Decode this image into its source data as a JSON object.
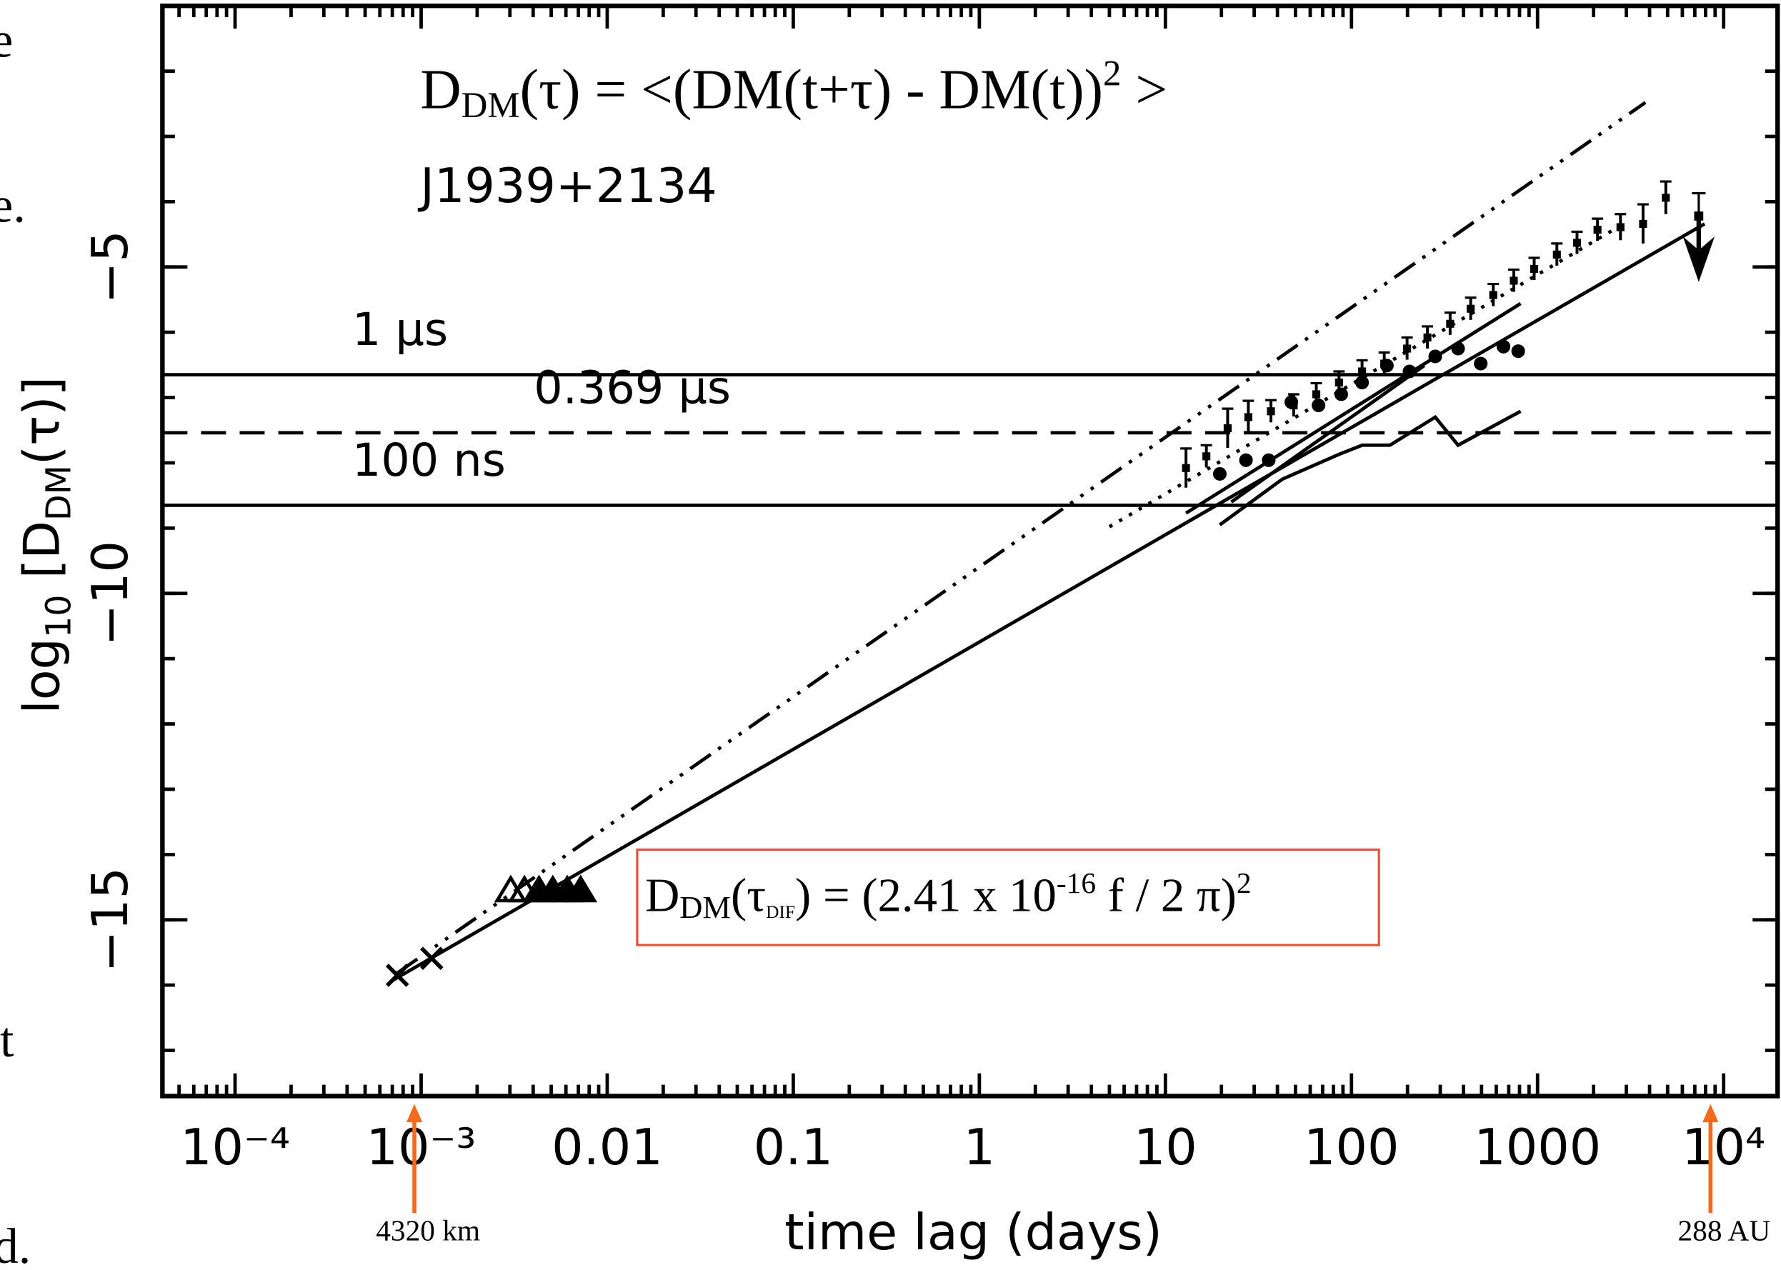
{
  "chart_data": {
    "type": "scatter",
    "equation": [
      "D",
      "DM",
      "(τ) = <(DM(t+τ) - DM(t))",
      "2",
      " >"
    ],
    "source": "J1939+2134",
    "box_equation": [
      "D",
      "DM",
      "(τ",
      "DIF",
      ") = (2.41 x 10",
      "-16",
      " f / 2 π)",
      "2"
    ],
    "xlabel": "time lag (days)",
    "ylabel": [
      "log",
      "10",
      " [D",
      "DM",
      "(τ)]"
    ],
    "xscale": "log",
    "xlim": [
      4.07e-05,
      19500
    ],
    "ylim": [
      -17.7,
      -1
    ],
    "xticks": [
      {
        "value": 0.0001,
        "label": "10⁻⁴"
      },
      {
        "value": 0.001,
        "label": "10⁻³"
      },
      0.01,
      0.1,
      1,
      10,
      100,
      1000,
      {
        "value": 10000,
        "label": "10⁴"
      }
    ],
    "yticks": [
      {
        "value": -5,
        "label": "−5"
      },
      {
        "value": -10,
        "label": "−10"
      },
      {
        "value": -15,
        "label": "−15"
      }
    ],
    "minor_ticks": true,
    "hlines": [
      {
        "value": -6.65,
        "label": "1 μs",
        "dash": "solid"
      },
      {
        "value": -7.54,
        "label": "0.369 μs",
        "dash": "dashed"
      },
      {
        "value": -8.65,
        "label": "100 ns",
        "dash": "solid"
      }
    ],
    "lines": [
      {
        "x": [
          0.00069,
          7900
        ],
        "y": [
          -15.94,
          -4.34
        ],
        "dash": "solid"
      },
      {
        "x": [
          0.00074,
          3800
        ],
        "y": [
          -15.82,
          -2.48
        ],
        "dash": "dash-dot"
      },
      {
        "x": [
          5.0,
          2900
        ],
        "y": [
          -8.98,
          -4.34
        ],
        "dash": "dotted"
      },
      {
        "x": [
          12.9,
          811
        ],
        "y": [
          -8.77,
          -5.56
        ],
        "dash": "solid"
      },
      {
        "x": [
          22.6,
          246
        ],
        "y": [
          -8.6,
          -6.51
        ],
        "dash": "solid"
      },
      {
        "x": [
          19.6,
          42.5,
          85.7,
          114,
          161,
          282,
          374,
          811
        ],
        "y": [
          -8.95,
          -8.25,
          -7.87,
          -7.73,
          -7.73,
          -7.3,
          -7.73,
          -7.21
        ],
        "dash": "solid"
      }
    ],
    "points": [
      {
        "marker": "errorbar-square",
        "x": [
          12.9,
          16.6,
          21.6,
          27.9,
          36.9,
          48.9,
          64.7,
          85.7,
          114,
          150,
          199,
          256,
          339,
          437,
          578,
          745,
          959,
          1270,
          1630,
          2100,
          2790,
          3690,
          4890
        ],
        "values": [
          -8.08,
          -7.9,
          -7.47,
          -7.3,
          -7.21,
          -7.12,
          -6.95,
          -6.77,
          -6.6,
          -6.48,
          -6.25,
          -6.08,
          -5.87,
          -5.64,
          -5.43,
          -5.21,
          -5.03,
          -4.81,
          -4.63,
          -4.43,
          -4.39,
          -4.34,
          -3.94
        ],
        "errors": [
          0.3,
          0.17,
          0.3,
          0.25,
          0.17,
          0.17,
          0.17,
          0.17,
          0.17,
          0.17,
          0.17,
          0.17,
          0.17,
          0.17,
          0.17,
          0.17,
          0.17,
          0.17,
          0.17,
          0.17,
          0.2,
          0.3,
          0.25
        ],
        "color": "#000000"
      },
      {
        "marker": "upper-limit",
        "x": [
          7350
        ],
        "values": [
          -4.22
        ],
        "errors": [
          0.35
        ],
        "color": "#000000"
      },
      {
        "marker": "dot",
        "x": [
          19.6,
          27.1,
          35.9,
          47.5,
          66.5,
          88.1,
          114,
          155,
          205,
          282,
          374,
          495,
          656,
          787
        ],
        "values": [
          -8.17,
          -7.96,
          -7.96,
          -7.07,
          -7.12,
          -6.95,
          -6.77,
          -6.51,
          -6.6,
          -6.37,
          -6.25,
          -6.48,
          -6.22,
          -6.29
        ],
        "color": "#000000"
      },
      {
        "marker": "triangle",
        "x": [
          0.00303,
          0.00359,
          0.0043,
          0.0051,
          0.0061,
          0.0072
        ],
        "values": [
          -14.55,
          -14.55,
          -14.55,
          -14.55,
          -14.55,
          -14.55
        ],
        "color": "#000000"
      },
      {
        "marker": "cross",
        "x": [
          0.000745,
          0.00114
        ],
        "values": [
          -15.85,
          -15.59
        ],
        "color": "#000000"
      }
    ],
    "annotations": [
      {
        "text": "4320 km",
        "x": 0.00092,
        "color": "#f26a1b"
      },
      {
        "text": "288 AU",
        "x": 8500,
        "color": "#f26a1b"
      }
    ],
    "margin_text": [
      "e",
      "e.",
      "nt",
      "red."
    ]
  }
}
